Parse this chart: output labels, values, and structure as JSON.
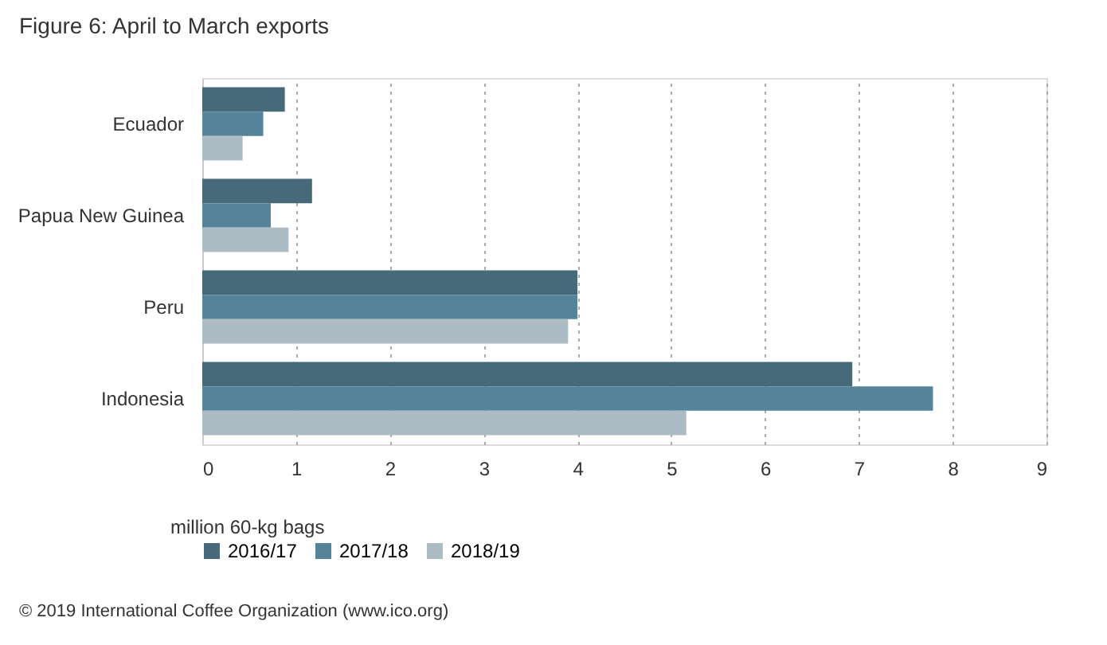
{
  "chart_data": {
    "type": "bar",
    "orientation": "horizontal",
    "title": "Figure 6: April to March exports",
    "categories": [
      "Ecuador",
      "Papua New Guinea",
      "Peru",
      "Indonesia"
    ],
    "series": [
      {
        "name": "2016/17",
        "color": "#466a7a",
        "values": [
          0.88,
          1.17,
          4.0,
          6.93
        ]
      },
      {
        "name": "2017/18",
        "color": "#55849a",
        "values": [
          0.65,
          0.73,
          4.0,
          7.79
        ]
      },
      {
        "name": "2018/19",
        "color": "#adbcc4",
        "values": [
          0.43,
          0.92,
          3.9,
          5.16
        ]
      }
    ],
    "xlabel": "million 60-kg bags",
    "xlim": [
      0,
      9
    ],
    "xticks": [
      0,
      1,
      2,
      3,
      4,
      5,
      6,
      7,
      8,
      9
    ],
    "grid": "x",
    "legend": "bottom",
    "annotations": [
      "© 2019 International Coffee Organization (www.ico.org)"
    ]
  }
}
